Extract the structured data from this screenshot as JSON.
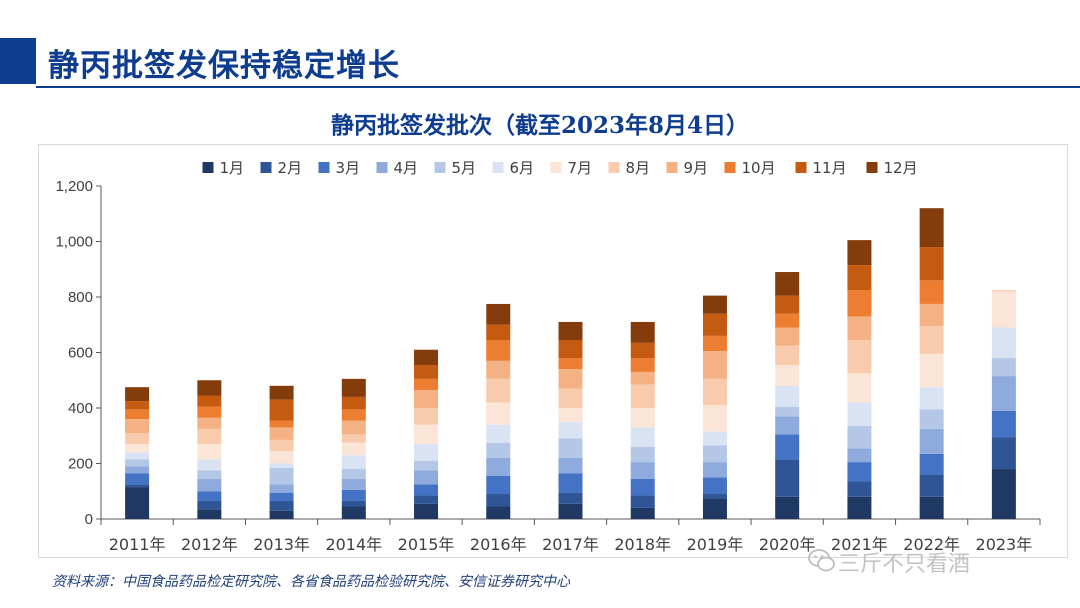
{
  "header": {
    "title": "静丙批签发保持稳定增长"
  },
  "footer": {
    "source": "资料来源：中国食品药品检定研究院、各省食品药品检验研究院、安信证券研究中心"
  },
  "watermark": {
    "text": "三斤不只看酒"
  },
  "chart_data": {
    "type": "bar",
    "stacked": true,
    "title": "静丙批签发批次（截至2023年8月4日）",
    "xlabel": "",
    "ylabel": "",
    "ylim": [
      0,
      1200
    ],
    "yticks": [
      0,
      200,
      400,
      600,
      800,
      1000,
      1200
    ],
    "ytick_labels": [
      "0",
      "200",
      "400",
      "600",
      "800",
      "1,000",
      "1,200"
    ],
    "legend_position": "top",
    "categories": [
      "2011年",
      "2012年",
      "2013年",
      "2014年",
      "2015年",
      "2016年",
      "2017年",
      "2018年",
      "2019年",
      "2020年",
      "2021年",
      "2022年",
      "2023年"
    ],
    "series": [
      {
        "name": "1月",
        "color": "#1f3864",
        "values": [
          115,
          35,
          30,
          45,
          55,
          45,
          55,
          40,
          75,
          80,
          80,
          80,
          180
        ]
      },
      {
        "name": "2月",
        "color": "#2f5597",
        "values": [
          10,
          30,
          35,
          20,
          30,
          45,
          40,
          45,
          15,
          135,
          55,
          80,
          115
        ]
      },
      {
        "name": "3月",
        "color": "#4472c4",
        "values": [
          40,
          35,
          30,
          40,
          40,
          65,
          70,
          60,
          60,
          90,
          70,
          75,
          95
        ]
      },
      {
        "name": "4月",
        "color": "#8faadc",
        "values": [
          25,
          45,
          30,
          40,
          50,
          65,
          55,
          60,
          55,
          65,
          50,
          90,
          125
        ]
      },
      {
        "name": "5月",
        "color": "#b4c7e7",
        "values": [
          25,
          30,
          60,
          35,
          35,
          55,
          70,
          55,
          60,
          35,
          80,
          70,
          65
        ]
      },
      {
        "name": "6月",
        "color": "#dae3f3",
        "values": [
          25,
          40,
          15,
          50,
          60,
          65,
          60,
          70,
          50,
          75,
          85,
          80,
          110
        ]
      },
      {
        "name": "7月",
        "color": "#fbe5d6",
        "values": [
          30,
          55,
          45,
          45,
          70,
          80,
          50,
          70,
          95,
          75,
          105,
          120,
          130
        ]
      },
      {
        "name": "8月",
        "color": "#f8cbad",
        "values": [
          40,
          55,
          40,
          30,
          60,
          85,
          70,
          85,
          95,
          70,
          120,
          100,
          5
        ]
      },
      {
        "name": "9月",
        "color": "#f4b183",
        "values": [
          50,
          40,
          45,
          50,
          65,
          65,
          70,
          45,
          100,
          65,
          85,
          80,
          0
        ]
      },
      {
        "name": "10月",
        "color": "#ed7d31",
        "values": [
          35,
          40,
          25,
          40,
          40,
          75,
          40,
          50,
          55,
          50,
          95,
          85,
          0
        ]
      },
      {
        "name": "11月",
        "color": "#c55a11",
        "values": [
          30,
          40,
          75,
          45,
          50,
          55,
          65,
          55,
          80,
          65,
          90,
          120,
          0
        ]
      },
      {
        "name": "12月",
        "color": "#843c0c",
        "values": [
          50,
          55,
          50,
          65,
          55,
          75,
          65,
          75,
          65,
          85,
          90,
          140,
          0
        ]
      }
    ]
  }
}
